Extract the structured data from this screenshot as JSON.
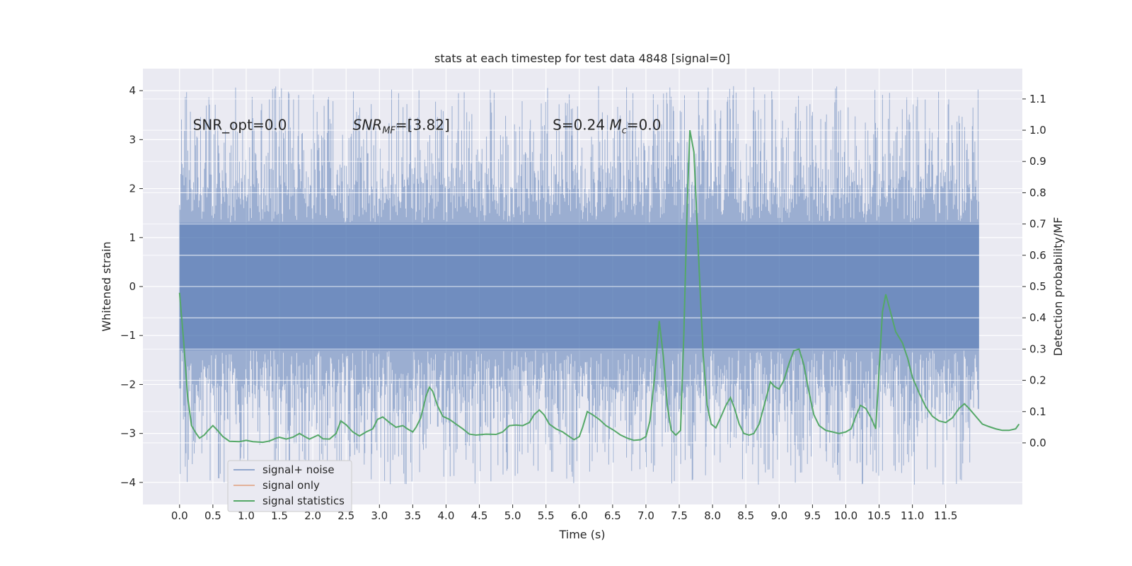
{
  "chart_data": {
    "type": "line",
    "title": "stats at each timestep for test data 4848 [signal=0]",
    "xlabel": "Time (s)",
    "ylabel": "Whitened strain",
    "y2label": "Detection probability/MF",
    "xlim": [
      -0.55,
      12.65
    ],
    "ylim": [
      -4.45,
      4.45
    ],
    "y2lim": [
      -0.197,
      1.197
    ],
    "xticks": [
      0.0,
      0.5,
      1.0,
      1.5,
      2.0,
      2.5,
      3.0,
      3.5,
      4.0,
      4.5,
      5.0,
      5.5,
      6.0,
      6.5,
      7.0,
      7.5,
      8.0,
      8.5,
      9.0,
      9.5,
      10.0,
      10.5,
      11.0,
      11.5
    ],
    "xtick_labels": [
      "0.0",
      "0.5",
      "1.0",
      "1.5",
      "2.0",
      "2.5",
      "3.0",
      "3.5",
      "4.0",
      "4.5",
      "5.0",
      "5.5",
      "6.0",
      "6.5",
      "7.0",
      "7.5",
      "8.0",
      "8.5",
      "9.0",
      "9.5",
      "10.0",
      "10.5",
      "11.0",
      "11.5"
    ],
    "yticks": [
      -4,
      -3,
      -2,
      -1,
      0,
      1,
      2,
      3,
      4
    ],
    "ytick_labels": [
      "−4",
      "−3",
      "−2",
      "−1",
      "0",
      "1",
      "2",
      "3",
      "4"
    ],
    "y2ticks": [
      0.0,
      0.1,
      0.2,
      0.3,
      0.4,
      0.5,
      0.6,
      0.7,
      0.8,
      0.9,
      1.0,
      1.1
    ],
    "y2tick_labels": [
      "0.0",
      "0.1",
      "0.2",
      "0.3",
      "0.4",
      "0.5",
      "0.6",
      "0.7",
      "0.8",
      "0.9",
      "1.0",
      "1.1"
    ],
    "annotations": [
      {
        "id": "snr-opt",
        "text": "SNR_opt=0.0",
        "x": 0.2,
        "y": 3.2
      },
      {
        "id": "snr-mf",
        "text": "SNR_MF=[3.82]",
        "x": 2.6,
        "y": 3.2
      },
      {
        "id": "s-mc",
        "text": "S=0.24   M_c=0.0",
        "x": 5.6,
        "y": 3.2
      }
    ],
    "grid": true,
    "legend_position": "lower-left",
    "series": [
      {
        "name": "signal+ noise",
        "color": "#4c72b0",
        "axis": "left",
        "duration_s": 12.0,
        "envelope_core": [
          -1.3,
          1.3
        ],
        "spike_max": 4.1,
        "spike_min": -4.05
      },
      {
        "name": "signal only",
        "color": "#dd8452",
        "axis": "left",
        "values": []
      },
      {
        "name": "signal statistics",
        "color": "#55a868",
        "axis": "right",
        "points": [
          [
            0.0,
            0.48
          ],
          [
            0.06,
            0.33
          ],
          [
            0.12,
            0.15
          ],
          [
            0.18,
            0.055
          ],
          [
            0.25,
            0.03
          ],
          [
            0.3,
            0.015
          ],
          [
            0.37,
            0.025
          ],
          [
            0.43,
            0.04
          ],
          [
            0.5,
            0.055
          ],
          [
            0.57,
            0.04
          ],
          [
            0.65,
            0.02
          ],
          [
            0.75,
            0.005
          ],
          [
            0.9,
            0.004
          ],
          [
            1.0,
            0.008
          ],
          [
            1.1,
            0.004
          ],
          [
            1.25,
            0.002
          ],
          [
            1.35,
            0.006
          ],
          [
            1.45,
            0.015
          ],
          [
            1.5,
            0.018
          ],
          [
            1.6,
            0.012
          ],
          [
            1.7,
            0.018
          ],
          [
            1.8,
            0.03
          ],
          [
            1.88,
            0.02
          ],
          [
            1.95,
            0.012
          ],
          [
            2.08,
            0.025
          ],
          [
            2.15,
            0.013
          ],
          [
            2.25,
            0.012
          ],
          [
            2.35,
            0.03
          ],
          [
            2.42,
            0.07
          ],
          [
            2.5,
            0.058
          ],
          [
            2.6,
            0.035
          ],
          [
            2.7,
            0.022
          ],
          [
            2.8,
            0.035
          ],
          [
            2.9,
            0.045
          ],
          [
            2.97,
            0.075
          ],
          [
            3.05,
            0.083
          ],
          [
            3.15,
            0.065
          ],
          [
            3.25,
            0.05
          ],
          [
            3.35,
            0.055
          ],
          [
            3.42,
            0.045
          ],
          [
            3.5,
            0.035
          ],
          [
            3.55,
            0.05
          ],
          [
            3.62,
            0.08
          ],
          [
            3.7,
            0.15
          ],
          [
            3.75,
            0.178
          ],
          [
            3.8,
            0.165
          ],
          [
            3.87,
            0.12
          ],
          [
            3.95,
            0.085
          ],
          [
            4.05,
            0.075
          ],
          [
            4.15,
            0.06
          ],
          [
            4.25,
            0.045
          ],
          [
            4.35,
            0.028
          ],
          [
            4.45,
            0.025
          ],
          [
            4.6,
            0.028
          ],
          [
            4.75,
            0.027
          ],
          [
            4.85,
            0.035
          ],
          [
            4.95,
            0.055
          ],
          [
            5.05,
            0.057
          ],
          [
            5.15,
            0.055
          ],
          [
            5.25,
            0.065
          ],
          [
            5.32,
            0.09
          ],
          [
            5.4,
            0.105
          ],
          [
            5.47,
            0.09
          ],
          [
            5.55,
            0.06
          ],
          [
            5.65,
            0.045
          ],
          [
            5.75,
            0.035
          ],
          [
            5.85,
            0.02
          ],
          [
            5.92,
            0.01
          ],
          [
            6.0,
            0.02
          ],
          [
            6.05,
            0.05
          ],
          [
            6.12,
            0.1
          ],
          [
            6.2,
            0.09
          ],
          [
            6.3,
            0.075
          ],
          [
            6.4,
            0.055
          ],
          [
            6.52,
            0.04
          ],
          [
            6.62,
            0.025
          ],
          [
            6.72,
            0.015
          ],
          [
            6.82,
            0.008
          ],
          [
            6.92,
            0.01
          ],
          [
            7.0,
            0.02
          ],
          [
            7.06,
            0.07
          ],
          [
            7.13,
            0.21
          ],
          [
            7.2,
            0.39
          ],
          [
            7.26,
            0.28
          ],
          [
            7.32,
            0.12
          ],
          [
            7.38,
            0.04
          ],
          [
            7.45,
            0.025
          ],
          [
            7.52,
            0.04
          ],
          [
            7.57,
            0.35
          ],
          [
            7.62,
            0.76
          ],
          [
            7.66,
            1.0
          ],
          [
            7.72,
            0.93
          ],
          [
            7.8,
            0.55
          ],
          [
            7.86,
            0.28
          ],
          [
            7.92,
            0.12
          ],
          [
            7.98,
            0.06
          ],
          [
            8.05,
            0.048
          ],
          [
            8.12,
            0.08
          ],
          [
            8.2,
            0.12
          ],
          [
            8.27,
            0.145
          ],
          [
            8.33,
            0.11
          ],
          [
            8.4,
            0.06
          ],
          [
            8.47,
            0.03
          ],
          [
            8.55,
            0.025
          ],
          [
            8.62,
            0.03
          ],
          [
            8.7,
            0.06
          ],
          [
            8.8,
            0.14
          ],
          [
            8.87,
            0.195
          ],
          [
            8.93,
            0.18
          ],
          [
            9.0,
            0.172
          ],
          [
            9.07,
            0.2
          ],
          [
            9.15,
            0.255
          ],
          [
            9.22,
            0.295
          ],
          [
            9.3,
            0.3
          ],
          [
            9.37,
            0.25
          ],
          [
            9.45,
            0.16
          ],
          [
            9.52,
            0.09
          ],
          [
            9.6,
            0.055
          ],
          [
            9.7,
            0.04
          ],
          [
            9.8,
            0.035
          ],
          [
            9.9,
            0.03
          ],
          [
            10.0,
            0.035
          ],
          [
            10.08,
            0.045
          ],
          [
            10.15,
            0.085
          ],
          [
            10.22,
            0.12
          ],
          [
            10.3,
            0.11
          ],
          [
            10.38,
            0.08
          ],
          [
            10.45,
            0.045
          ],
          [
            10.55,
            0.42
          ],
          [
            10.6,
            0.475
          ],
          [
            10.67,
            0.42
          ],
          [
            10.75,
            0.355
          ],
          [
            10.85,
            0.32
          ],
          [
            10.93,
            0.27
          ],
          [
            11.0,
            0.21
          ],
          [
            11.1,
            0.16
          ],
          [
            11.2,
            0.115
          ],
          [
            11.3,
            0.085
          ],
          [
            11.4,
            0.07
          ],
          [
            11.5,
            0.065
          ],
          [
            11.6,
            0.08
          ],
          [
            11.7,
            0.11
          ],
          [
            11.78,
            0.125
          ],
          [
            11.85,
            0.11
          ],
          [
            11.95,
            0.085
          ],
          [
            12.05,
            0.06
          ],
          [
            12.15,
            0.052
          ],
          [
            12.25,
            0.045
          ],
          [
            12.35,
            0.04
          ],
          [
            12.45,
            0.04
          ],
          [
            12.55,
            0.045
          ],
          [
            12.6,
            0.06
          ]
        ]
      }
    ]
  }
}
